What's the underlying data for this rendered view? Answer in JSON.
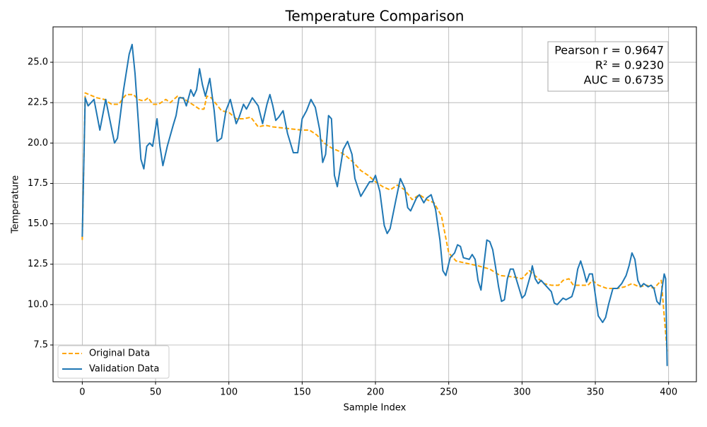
{
  "chart_data": {
    "type": "line",
    "title": "Temperature Comparison",
    "x_label": "Sample Index",
    "y_label": "Temperature",
    "annotations": [
      "Pearson r = 0.9647",
      "R² = 0.9230",
      "AUC = 0.6735"
    ],
    "xlim": [
      -19.95,
      418.95
    ],
    "xticks": [
      0,
      50,
      100,
      150,
      200,
      250,
      300,
      350,
      400
    ],
    "ylim": [
      5.225,
      27.19
    ],
    "yticks": [
      7.5,
      {
        "value": 10,
        "label": "10.0"
      },
      12.5,
      {
        "value": 15,
        "label": "15.0"
      },
      17.5,
      {
        "value": 20,
        "label": "20.0"
      },
      22.5,
      {
        "value": 25,
        "label": "25.0"
      }
    ],
    "grid": true,
    "legend": "lower left",
    "series": [
      {
        "name": "Original Data",
        "color": "#ffa500",
        "dash": true,
        "x": [
          0,
          2,
          10,
          15,
          20,
          25,
          28,
          30,
          35,
          38,
          42,
          45,
          48,
          52,
          57,
          60,
          65,
          70,
          75,
          80,
          83,
          85,
          88,
          95,
          100,
          105,
          110,
          115,
          120,
          125,
          130,
          140,
          150,
          155,
          160,
          165,
          170,
          175,
          180,
          185,
          190,
          195,
          200,
          205,
          210,
          215,
          220,
          225,
          230,
          235,
          240,
          245,
          250,
          255,
          260,
          265,
          270,
          278,
          285,
          295,
          300,
          305,
          310,
          315,
          320,
          325,
          328,
          332,
          335,
          340,
          345,
          348,
          352,
          358,
          365,
          370,
          375,
          380,
          385,
          390,
          395,
          399
        ],
        "values": [
          14,
          23.1,
          22.8,
          22.7,
          22.4,
          22.4,
          22.8,
          23,
          23,
          22.7,
          22.6,
          22.8,
          22.4,
          22.4,
          22.7,
          22.5,
          22.9,
          22.7,
          22.4,
          22.1,
          22.1,
          22.9,
          22.8,
          22,
          21.9,
          21.5,
          21.5,
          21.6,
          21,
          21.1,
          21,
          20.9,
          20.8,
          20.8,
          20.5,
          20,
          19.7,
          19.5,
          19.2,
          18.8,
          18.3,
          18,
          17.6,
          17.3,
          17.1,
          17.4,
          17.1,
          16.5,
          16.8,
          16.5,
          16.3,
          15.5,
          13.2,
          12.7,
          12.6,
          12.5,
          12.4,
          12.2,
          11.8,
          11.7,
          11.6,
          12.1,
          11.7,
          11.3,
          11.2,
          11.2,
          11.5,
          11.6,
          11.2,
          11.2,
          11.2,
          11.5,
          11.2,
          11,
          11,
          11.1,
          11.3,
          11.1,
          11.2,
          11,
          11.5,
          7.1
        ]
      },
      {
        "name": "Validation Data",
        "color": "#1f77b4",
        "dash": false,
        "x": [
          0,
          2,
          4,
          8,
          12,
          16,
          18,
          22,
          24,
          28,
          32,
          34,
          36,
          40,
          42,
          44,
          46,
          48,
          51,
          53,
          55,
          58,
          62,
          64,
          66,
          69,
          71,
          74,
          76,
          78,
          80,
          82,
          84,
          87,
          90,
          92,
          95,
          98,
          101,
          105,
          107,
          110,
          112,
          116,
          120,
          123,
          126,
          128,
          130,
          132,
          134,
          137,
          140,
          144,
          147,
          150,
          153,
          156,
          159,
          162,
          164,
          166,
          168,
          170,
          172,
          174,
          178,
          181,
          184,
          186,
          190,
          192,
          196,
          198,
          200,
          203,
          206,
          208,
          210,
          214,
          217,
          220,
          222,
          224,
          228,
          230,
          233,
          235,
          238,
          241,
          244,
          246,
          248,
          251,
          254,
          256,
          258,
          260,
          264,
          266,
          268,
          270,
          272,
          274,
          276,
          278,
          280,
          282,
          284,
          286,
          288,
          290,
          292,
          294,
          296,
          300,
          302,
          306,
          307,
          309,
          311,
          313,
          315,
          318,
          320,
          322,
          324,
          328,
          330,
          334,
          336,
          338,
          340,
          342,
          344,
          346,
          348,
          350,
          352,
          355,
          357,
          359,
          362,
          365,
          368,
          371,
          373,
          375,
          377,
          379,
          381,
          383,
          386,
          388,
          390,
          392,
          394,
          396,
          397,
          398,
          399
        ],
        "values": [
          14.2,
          22.8,
          22.3,
          22.7,
          20.8,
          22.7,
          21.8,
          20,
          20.3,
          23.2,
          25.5,
          26.1,
          24.3,
          19,
          18.4,
          19.8,
          20,
          19.8,
          21.5,
          19.8,
          18.6,
          19.8,
          21.1,
          21.7,
          22.8,
          22.8,
          22.3,
          23.3,
          22.9,
          23.3,
          24.6,
          23.6,
          22.9,
          24,
          22,
          20.1,
          20.3,
          22,
          22.7,
          21.2,
          21.6,
          22.4,
          22.1,
          22.8,
          22.3,
          21.2,
          22.4,
          23,
          22.3,
          21.4,
          21.6,
          22,
          20.6,
          19.4,
          19.4,
          21.5,
          22,
          22.7,
          22.2,
          20.8,
          18.8,
          19.3,
          21.7,
          21.5,
          18,
          17.3,
          19.6,
          20.1,
          19.3,
          17.8,
          16.7,
          17,
          17.6,
          17.6,
          18,
          17,
          14.9,
          14.4,
          14.7,
          16.5,
          17.8,
          17.2,
          16,
          15.8,
          16.6,
          16.8,
          16.3,
          16.6,
          16.8,
          15.9,
          14,
          12.1,
          11.8,
          12.9,
          13.2,
          13.7,
          13.6,
          12.9,
          12.8,
          13.1,
          12.8,
          11.5,
          10.9,
          12.5,
          14,
          13.9,
          13.4,
          12.3,
          11.1,
          10.2,
          10.3,
          11.6,
          12.2,
          12.2,
          11.6,
          10.4,
          10.6,
          11.9,
          12.4,
          11.6,
          11.3,
          11.5,
          11.3,
          11,
          10.8,
          10.1,
          10,
          10.4,
          10.3,
          10.5,
          11.1,
          12.2,
          12.7,
          12.1,
          11.4,
          11.9,
          11.9,
          10.6,
          9.3,
          8.9,
          9.2,
          10,
          11,
          11,
          11.3,
          11.8,
          12.4,
          13.2,
          12.8,
          11.5,
          11.1,
          11.3,
          11.1,
          11.2,
          11,
          10.2,
          10,
          11.3,
          11.9,
          11.6,
          6.2
        ]
      }
    ]
  }
}
